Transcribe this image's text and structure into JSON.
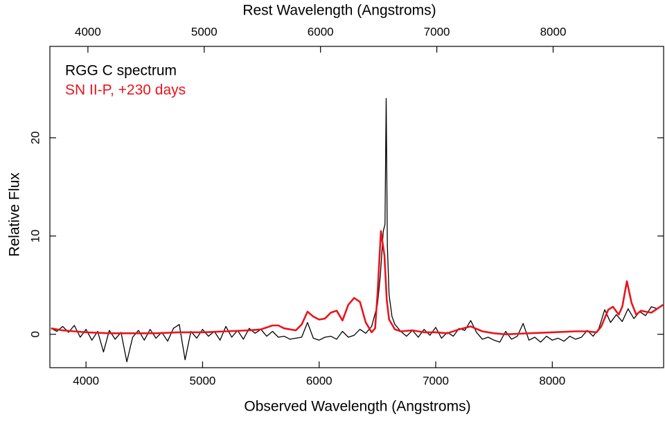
{
  "chart_data": {
    "type": "line",
    "xlabel": "Observed Wavelength (Angstroms)",
    "x2label": "Rest Wavelength (Angstroms)",
    "ylabel": "Relative Flux",
    "xlim": [
      3690,
      8955
    ],
    "xticks": [
      4000,
      5000,
      6000,
      7000,
      8000
    ],
    "x2lim": [
      3673,
      8950
    ],
    "x2ticks": [
      4000,
      5000,
      6000,
      7000,
      8000
    ],
    "ylim": [
      -3.4,
      29.3
    ],
    "yticks": [
      0,
      10,
      20
    ],
    "legend": "upper left",
    "series": [
      {
        "name": "RGG C spectrum",
        "color": "#000000",
        "x": [
          3700,
          3750,
          3800,
          3850,
          3900,
          3950,
          4000,
          4050,
          4100,
          4150,
          4200,
          4250,
          4300,
          4350,
          4400,
          4450,
          4500,
          4550,
          4600,
          4650,
          4700,
          4750,
          4800,
          4850,
          4900,
          4950,
          5000,
          5050,
          5100,
          5150,
          5200,
          5250,
          5300,
          5350,
          5400,
          5450,
          5500,
          5550,
          5600,
          5650,
          5700,
          5750,
          5800,
          5850,
          5900,
          5950,
          6000,
          6050,
          6100,
          6150,
          6200,
          6250,
          6300,
          6350,
          6400,
          6450,
          6500,
          6525,
          6550,
          6565,
          6575,
          6585,
          6600,
          6625,
          6650,
          6700,
          6750,
          6800,
          6850,
          6900,
          6950,
          7000,
          7050,
          7100,
          7150,
          7200,
          7250,
          7300,
          7350,
          7400,
          7450,
          7500,
          7550,
          7600,
          7650,
          7700,
          7750,
          7800,
          7850,
          7900,
          7950,
          8000,
          8050,
          8100,
          8150,
          8200,
          8250,
          8300,
          8350,
          8400,
          8450,
          8500,
          8550,
          8600,
          8650,
          8700,
          8750,
          8800,
          8850,
          8900,
          8950
        ],
        "values": [
          0.6,
          0.3,
          0.8,
          0.2,
          0.9,
          -0.3,
          0.5,
          -0.6,
          0.3,
          -1.8,
          0.4,
          -0.5,
          0.2,
          -2.8,
          -0.3,
          0.4,
          -0.6,
          0.5,
          -0.4,
          0.2,
          -0.7,
          0.6,
          1.0,
          -2.6,
          0.3,
          -0.4,
          0.5,
          -0.2,
          0.3,
          -0.6,
          0.8,
          -0.3,
          0.4,
          -0.5,
          0.6,
          0.1,
          0.5,
          -0.2,
          0.3,
          -0.3,
          -0.2,
          -0.5,
          -0.4,
          -0.3,
          1.2,
          -0.4,
          -0.6,
          -0.3,
          -0.2,
          -0.5,
          0.3,
          -0.3,
          -0.1,
          0.5,
          0.1,
          0.8,
          3.0,
          6.0,
          10.5,
          11.2,
          24,
          9,
          4,
          1.8,
          1.0,
          0.3,
          -0.2,
          0.4,
          -0.3,
          0.5,
          -0.1,
          0.7,
          -0.4,
          0.2,
          -0.2,
          0.6,
          0.4,
          1.4,
          0.2,
          -0.5,
          -0.3,
          -0.6,
          -0.8,
          0.3,
          -0.5,
          -0.2,
          1.1,
          -0.6,
          -0.3,
          -0.8,
          -0.2,
          -0.6,
          -0.4,
          -0.7,
          -0.2,
          -0.5,
          -0.3,
          0.4,
          -0.2,
          0.6,
          2.5,
          1.2,
          2.0,
          1.3,
          2.6,
          1.6,
          2.3,
          1.9,
          2.8,
          2.6,
          3.0
        ]
      },
      {
        "name": "SN II-P, +230 days",
        "color": "#e8141c",
        "x": [
          3700,
          3800,
          3900,
          4000,
          4200,
          4400,
          4600,
          4800,
          5000,
          5200,
          5400,
          5500,
          5600,
          5650,
          5700,
          5800,
          5850,
          5900,
          5950,
          6000,
          6050,
          6100,
          6150,
          6200,
          6250,
          6300,
          6350,
          6400,
          6450,
          6480,
          6500,
          6530,
          6560,
          6580,
          6600,
          6650,
          6700,
          6800,
          6900,
          7000,
          7100,
          7200,
          7300,
          7400,
          7500,
          7600,
          7800,
          8000,
          8200,
          8300,
          8380,
          8420,
          8480,
          8520,
          8570,
          8600,
          8640,
          8680,
          8720,
          8760,
          8800,
          8850,
          8900,
          8950
        ],
        "values": [
          0.6,
          0.4,
          0.3,
          0.2,
          0.1,
          0.1,
          0.1,
          0.2,
          0.2,
          0.3,
          0.4,
          0.5,
          0.9,
          0.9,
          0.6,
          0.4,
          1.0,
          2.3,
          1.8,
          1.5,
          1.6,
          2.2,
          2.4,
          1.4,
          3.0,
          3.7,
          3.3,
          1.2,
          0.2,
          0.6,
          4.0,
          10.5,
          8.0,
          3.5,
          1.5,
          0.5,
          0.3,
          0.4,
          0.2,
          0.2,
          0.1,
          0.5,
          0.8,
          0.3,
          0.1,
          0.0,
          0.1,
          0.2,
          0.3,
          0.3,
          0.2,
          0.8,
          2.5,
          2.8,
          2.0,
          2.8,
          5.4,
          3.2,
          2.0,
          2.4,
          2.3,
          2.2,
          2.6,
          3.0
        ]
      }
    ]
  }
}
